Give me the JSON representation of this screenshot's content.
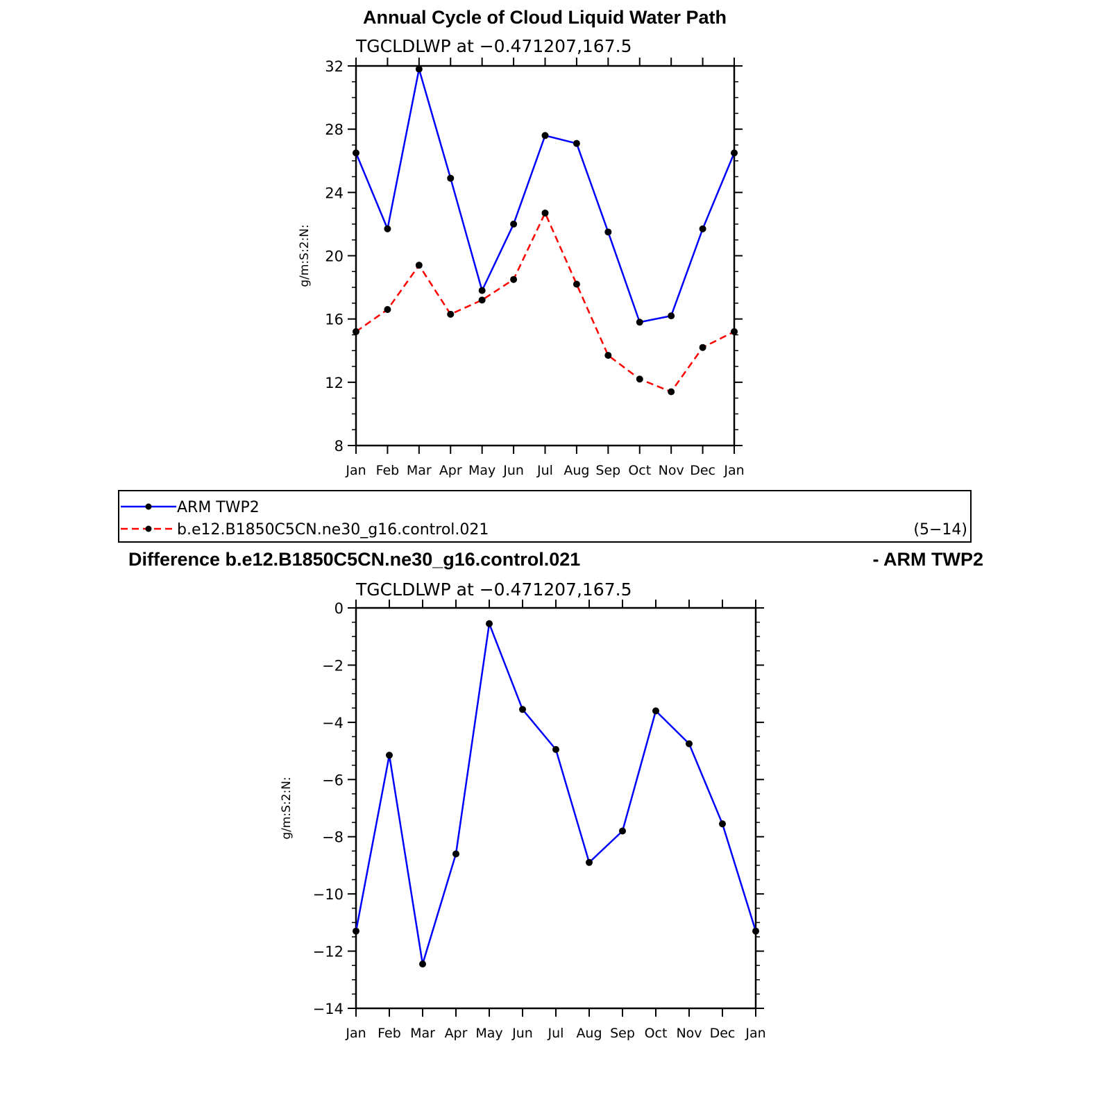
{
  "legend": {
    "entries": [
      "ARM TWP2",
      "b.e12.B1850C5CN.ne30_g16.control.021"
    ],
    "note": "(5−14)"
  },
  "chart_data": [
    {
      "type": "line",
      "title": "Annual Cycle of Cloud Liquid Water Path",
      "subtitle": "TGCLDLWP at −0.471207,167.5",
      "xlabel": "",
      "ylabel": "g/m:S:2:N:",
      "ylim": [
        8,
        32
      ],
      "yticks": [
        8,
        12,
        16,
        20,
        24,
        28,
        32
      ],
      "categories": [
        "Jan",
        "Feb",
        "Mar",
        "Apr",
        "May",
        "Jun",
        "Jul",
        "Aug",
        "Sep",
        "Oct",
        "Nov",
        "Dec",
        "Jan"
      ],
      "series": [
        {
          "name": "ARM TWP2",
          "color": "#0000ff",
          "dash": "solid",
          "values": [
            26.5,
            21.7,
            31.8,
            24.9,
            17.8,
            22.0,
            27.6,
            27.1,
            21.5,
            15.8,
            16.2,
            21.7,
            26.5
          ]
        },
        {
          "name": "b.e12.B1850C5CN.ne30_g16.control.021",
          "color": "#ff0000",
          "dash": "dashed",
          "values": [
            15.2,
            16.6,
            19.4,
            16.3,
            17.2,
            18.5,
            22.7,
            18.2,
            13.7,
            12.2,
            11.4,
            14.2,
            15.2
          ]
        }
      ]
    },
    {
      "type": "line",
      "title_left": "Difference b.e12.B1850C5CN.ne30_g16.control.021",
      "title_right": "- ARM TWP2",
      "subtitle": "TGCLDLWP at −0.471207,167.5",
      "xlabel": "",
      "ylabel": "g/m:S:2:N:",
      "ylim": [
        -14,
        0
      ],
      "yticks": [
        -14,
        -12,
        -10,
        -8,
        -6,
        -4,
        -2,
        0
      ],
      "categories": [
        "Jan",
        "Feb",
        "Mar",
        "Apr",
        "May",
        "Jun",
        "Jul",
        "Aug",
        "Sep",
        "Oct",
        "Nov",
        "Dec",
        "Jan"
      ],
      "series": [
        {
          "color": "#0000ff",
          "dash": "solid",
          "values": [
            -11.3,
            -5.15,
            -12.45,
            -8.6,
            -0.55,
            -3.55,
            -4.95,
            -8.9,
            -7.8,
            -3.6,
            -4.75,
            -7.55,
            -11.3
          ]
        }
      ]
    }
  ]
}
